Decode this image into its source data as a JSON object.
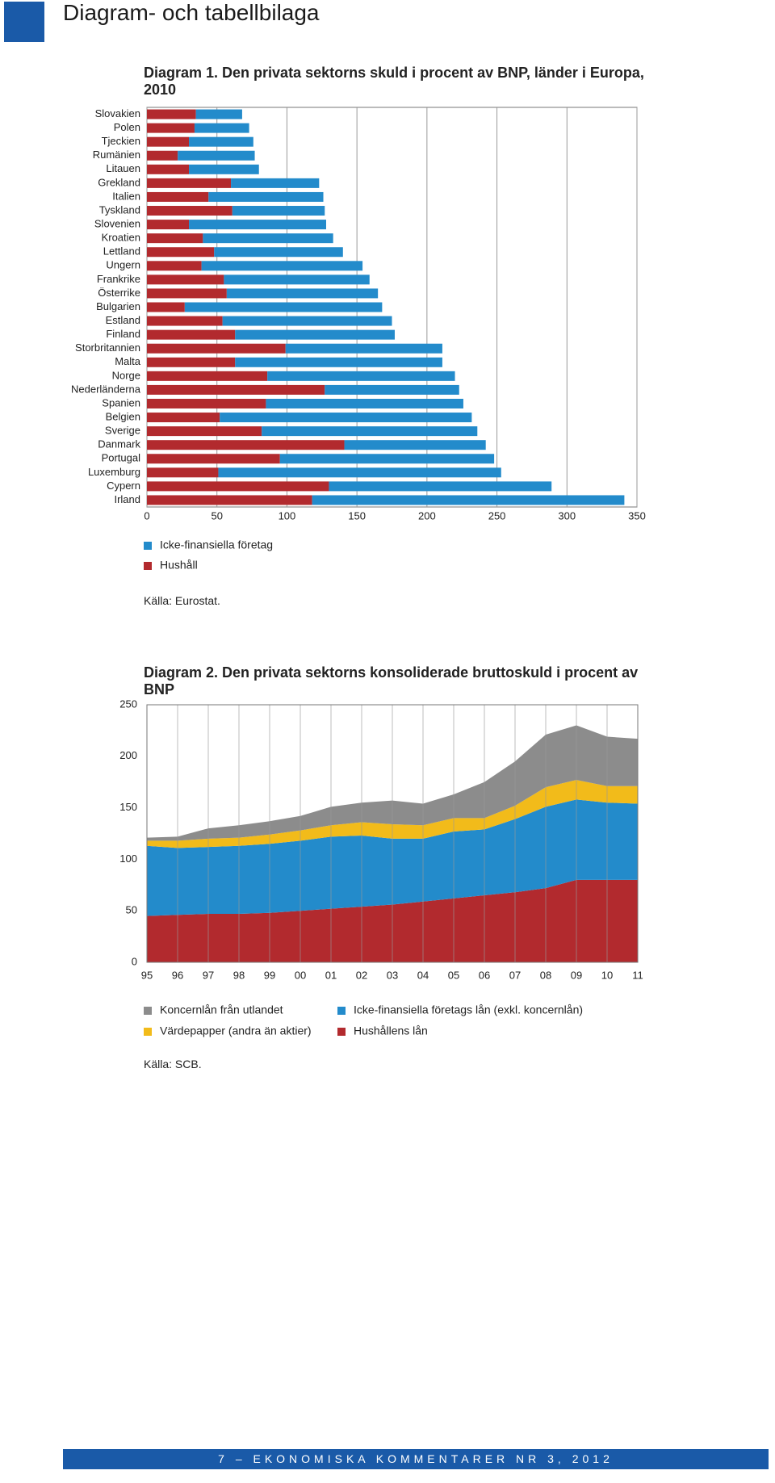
{
  "header": {
    "title": "Diagram- och tabellbilaga"
  },
  "chart_data": [
    {
      "type": "bar",
      "orientation": "horizontal",
      "stacked": true,
      "title": "Diagram 1. Den privata sektorns skuld i procent av BNP, länder i Europa, 2010",
      "categories": [
        "Slovakien",
        "Polen",
        "Tjeckien",
        "Rumänien",
        "Litauen",
        "Grekland",
        "Italien",
        "Tyskland",
        "Slovenien",
        "Kroatien",
        "Lettland",
        "Ungern",
        "Frankrike",
        "Österrike",
        "Bulgarien",
        "Estland",
        "Finland",
        "Storbritannien",
        "Malta",
        "Norge",
        "Nederländerna",
        "Spanien",
        "Belgien",
        "Sverige",
        "Danmark",
        "Portugal",
        "Luxemburg",
        "Cypern",
        "Irland"
      ],
      "series": [
        {
          "name": "Hushåll",
          "color": "#b22a2e",
          "values": [
            35,
            34,
            30,
            22,
            30,
            60,
            44,
            61,
            30,
            40,
            48,
            39,
            55,
            57,
            27,
            54,
            63,
            99,
            63,
            86,
            127,
            85,
            52,
            82,
            141,
            95,
            51,
            130,
            118
          ]
        },
        {
          "name": "Icke-finansiella företag",
          "color": "#238bcb",
          "values": [
            33,
            39,
            46,
            55,
            50,
            63,
            82,
            66,
            98,
            93,
            92,
            115,
            104,
            108,
            141,
            121,
            114,
            112,
            148,
            134,
            96,
            141,
            180,
            154,
            101,
            153,
            202,
            159,
            223
          ]
        }
      ],
      "xlim": [
        0,
        350
      ],
      "xticks": [
        0,
        50,
        100,
        150,
        200,
        250,
        300,
        350
      ],
      "grid": true,
      "source": "Källa: Eurostat."
    },
    {
      "type": "area",
      "stacked": true,
      "title": "Diagram 2. Den privata sektorns konsoliderade bruttoskuld i procent av BNP",
      "categories": [
        "95",
        "96",
        "97",
        "98",
        "99",
        "00",
        "01",
        "02",
        "03",
        "04",
        "05",
        "06",
        "07",
        "08",
        "09",
        "10",
        "11"
      ],
      "series": [
        {
          "name": "Hushållens lån",
          "color": "#b22a2e",
          "values": [
            45,
            46,
            47,
            47,
            48,
            50,
            52,
            54,
            56,
            59,
            62,
            65,
            68,
            72,
            80,
            80,
            80
          ]
        },
        {
          "name": "Icke-finansiella företags lån (exkl. koncernlån)",
          "color": "#238bcb",
          "values": [
            68,
            65,
            65,
            66,
            67,
            68,
            70,
            69,
            64,
            61,
            65,
            64,
            71,
            79,
            78,
            75,
            74
          ]
        },
        {
          "name": "Värdepapper (andra än aktier)",
          "color": "#f2bb1a",
          "values": [
            5,
            7,
            8,
            8,
            9,
            10,
            11,
            13,
            14,
            13,
            13,
            11,
            13,
            19,
            19,
            16,
            17
          ]
        },
        {
          "name": "Koncernlån från utlandet",
          "color": "#8c8c8c",
          "values": [
            3,
            4,
            10,
            12,
            13,
            14,
            18,
            19,
            23,
            21,
            23,
            35,
            43,
            51,
            53,
            48,
            46
          ]
        }
      ],
      "ylim": [
        0,
        250
      ],
      "yticks": [
        0,
        50,
        100,
        150,
        200,
        250
      ],
      "grid": true,
      "source": "Källa: SCB."
    }
  ],
  "footer": {
    "text": "7 – EKONOMISKA KOMMENTARER NR 3, 2012"
  }
}
